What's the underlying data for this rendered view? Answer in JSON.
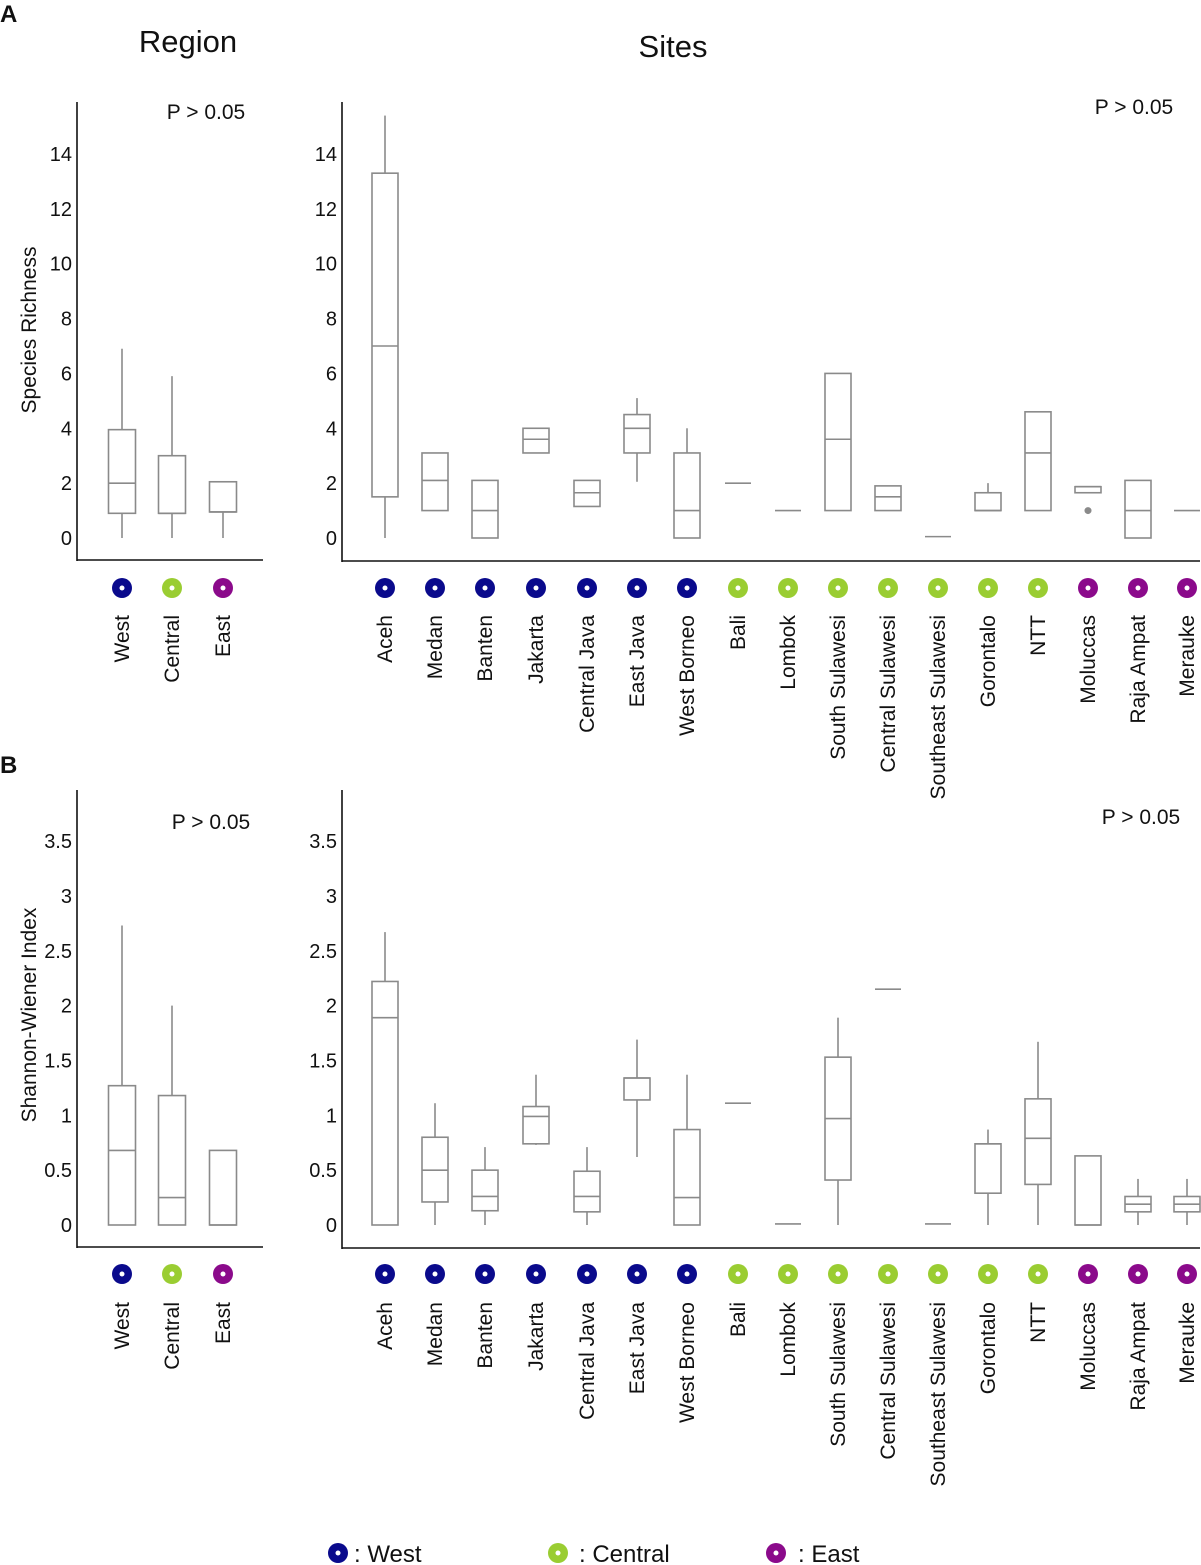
{
  "panel_labels": [
    "A",
    "B"
  ],
  "titles": {
    "region": "Region",
    "sites": "Sites"
  },
  "colors": {
    "West": "#0a0a8c",
    "Central": "#9acd32",
    "East": "#8b0a8b",
    "box": "#8a8a8a",
    "axis": "#111111"
  },
  "legend": [
    {
      "group": "West",
      "label": ": West"
    },
    {
      "group": "Central",
      "label": ": Central"
    },
    {
      "group": "East",
      "label": ": East"
    }
  ],
  "chart_data": [
    {
      "type": "boxplot",
      "panel": "A",
      "title": "Region",
      "ylabel": "Species Richness",
      "annotation": "P > 0.05",
      "ylim": [
        0,
        15
      ],
      "yticks": [
        "0",
        "2",
        "4",
        "6",
        "8",
        "10",
        "12",
        "14"
      ],
      "ytick_values": [
        0,
        2,
        4,
        6,
        8,
        10,
        12,
        14
      ],
      "categories": [
        "West",
        "Central",
        "East"
      ],
      "groups": [
        "West",
        "Central",
        "East"
      ],
      "boxes": [
        {
          "min": 0,
          "q1": 0.9,
          "median": 2.0,
          "q3": 3.95,
          "max": 6.9,
          "outliers": []
        },
        {
          "min": 0,
          "q1": 0.9,
          "median": 0.9,
          "q3": 3.0,
          "max": 5.9,
          "outliers": []
        },
        {
          "min": 0,
          "q1": 0.95,
          "median": 0.95,
          "q3": 2.05,
          "max": 2.05,
          "outliers": []
        }
      ]
    },
    {
      "type": "boxplot",
      "panel": "A",
      "title": "Sites",
      "ylabel": "",
      "annotation": "P > 0.05",
      "ylim": [
        0,
        15.5
      ],
      "yticks": [
        "0",
        "2",
        "4",
        "6",
        "8",
        "10",
        "12",
        "14"
      ],
      "ytick_values": [
        0,
        2,
        4,
        6,
        8,
        10,
        12,
        14
      ],
      "categories": [
        "Aceh",
        "Medan",
        "Banten",
        "Jakarta",
        "Central Java",
        "East Java",
        "West Borneo",
        "Bali",
        "Lombok",
        "South Sulawesi",
        "Central Sulawesi",
        "Southeast Sulawesi",
        "Gorontalo",
        "NTT",
        "Moluccas",
        "Raja Ampat",
        "Merauke"
      ],
      "groups": [
        "West",
        "West",
        "West",
        "West",
        "West",
        "West",
        "West",
        "Central",
        "Central",
        "Central",
        "Central",
        "Central",
        "Central",
        "Central",
        "East",
        "East",
        "East"
      ],
      "boxes": [
        {
          "min": 0,
          "q1": 1.5,
          "median": 7.0,
          "q3": 13.3,
          "max": 15.4,
          "outliers": []
        },
        {
          "min": 1.0,
          "q1": 1.0,
          "median": 2.1,
          "q3": 3.1,
          "max": 3.1,
          "outliers": []
        },
        {
          "min": 0,
          "q1": 0,
          "median": 1.0,
          "q3": 2.1,
          "max": 2.1,
          "outliers": []
        },
        {
          "min": 3.1,
          "q1": 3.1,
          "median": 3.6,
          "q3": 4.0,
          "max": 4.0,
          "outliers": []
        },
        {
          "min": 1.15,
          "q1": 1.15,
          "median": 1.65,
          "q3": 2.1,
          "max": 2.1,
          "outliers": []
        },
        {
          "min": 2.05,
          "q1": 3.1,
          "median": 4.0,
          "q3": 4.5,
          "max": 5.1,
          "outliers": []
        },
        {
          "min": 0,
          "q1": 0,
          "median": 1.0,
          "q3": 3.1,
          "max": 4.0,
          "outliers": []
        },
        {
          "min": 2.0,
          "q1": 2.0,
          "median": 2.0,
          "q3": 2.0,
          "max": 2.0,
          "outliers": []
        },
        {
          "min": 1.0,
          "q1": 1.0,
          "median": 1.0,
          "q3": 1.0,
          "max": 1.0,
          "outliers": []
        },
        {
          "min": 1.0,
          "q1": 1.0,
          "median": 3.6,
          "q3": 6.0,
          "max": 6.0,
          "outliers": []
        },
        {
          "min": 1.0,
          "q1": 1.0,
          "median": 1.5,
          "q3": 1.9,
          "max": 1.9,
          "outliers": []
        },
        {
          "min": 0.05,
          "q1": 0.05,
          "median": 0.05,
          "q3": 0.05,
          "max": 0.05,
          "outliers": []
        },
        {
          "min": 1.0,
          "q1": 1.0,
          "median": 1.0,
          "q3": 1.65,
          "max": 2.0,
          "outliers": []
        },
        {
          "min": 1.0,
          "q1": 1.0,
          "median": 3.1,
          "q3": 4.6,
          "max": 4.6,
          "outliers": []
        },
        {
          "min": 1.65,
          "q1": 1.65,
          "median": 1.87,
          "q3": 1.87,
          "max": 1.87,
          "outliers": [
            1.0
          ]
        },
        {
          "min": 0,
          "q1": 0,
          "median": 1.0,
          "q3": 2.1,
          "max": 2.1,
          "outliers": []
        },
        {
          "min": 1.0,
          "q1": 1.0,
          "median": 1.0,
          "q3": 1.0,
          "max": 1.0,
          "outliers": []
        }
      ]
    },
    {
      "type": "boxplot",
      "panel": "B",
      "title": "",
      "ylabel": "Shannon-Wiener Index",
      "annotation": "P > 0.05",
      "ylim": [
        0,
        3.9
      ],
      "yticks": [
        "0",
        "0.5",
        "1",
        "1.5",
        "2",
        "2.5",
        "3",
        "3.5"
      ],
      "ytick_values": [
        0,
        0.5,
        1,
        1.5,
        2,
        2.5,
        3,
        3.5
      ],
      "categories": [
        "West",
        "Central",
        "East"
      ],
      "groups": [
        "West",
        "Central",
        "East"
      ],
      "boxes": [
        {
          "min": 0,
          "q1": 0,
          "median": 0.68,
          "q3": 1.27,
          "max": 2.73,
          "outliers": []
        },
        {
          "min": 0,
          "q1": 0,
          "median": 0.25,
          "q3": 1.18,
          "max": 2.0,
          "outliers": []
        },
        {
          "min": 0,
          "q1": 0,
          "median": 0,
          "q3": 0.68,
          "max": 0.68,
          "outliers": []
        }
      ]
    },
    {
      "type": "boxplot",
      "panel": "B",
      "title": "",
      "ylabel": "",
      "annotation": "P > 0.05",
      "ylim": [
        0,
        3.9
      ],
      "yticks": [
        "0",
        "0.5",
        "1",
        "1.5",
        "2",
        "2.5",
        "3",
        "3.5"
      ],
      "ytick_values": [
        0,
        0.5,
        1,
        1.5,
        2,
        2.5,
        3,
        3.5
      ],
      "categories": [
        "Aceh",
        "Medan",
        "Banten",
        "Jakarta",
        "Central Java",
        "East Java",
        "West Borneo",
        "Bali",
        "Lombok",
        "South Sulawesi",
        "Central Sulawesi",
        "Southeast Sulawesi",
        "Gorontalo",
        "NTT",
        "Moluccas",
        "Raja Ampat",
        "Merauke"
      ],
      "groups": [
        "West",
        "West",
        "West",
        "West",
        "West",
        "West",
        "West",
        "Central",
        "Central",
        "Central",
        "Central",
        "Central",
        "Central",
        "Central",
        "East",
        "East",
        "East"
      ],
      "boxes": [
        {
          "min": 0,
          "q1": 0,
          "median": 1.89,
          "q3": 2.22,
          "max": 2.67,
          "outliers": []
        },
        {
          "min": 0,
          "q1": 0.21,
          "median": 0.5,
          "q3": 0.8,
          "max": 1.11,
          "outliers": []
        },
        {
          "min": 0,
          "q1": 0.13,
          "median": 0.26,
          "q3": 0.5,
          "max": 0.71,
          "outliers": []
        },
        {
          "min": 0.73,
          "q1": 0.74,
          "median": 0.99,
          "q3": 1.08,
          "max": 1.37,
          "outliers": []
        },
        {
          "min": 0,
          "q1": 0.12,
          "median": 0.26,
          "q3": 0.49,
          "max": 0.71,
          "outliers": []
        },
        {
          "min": 0.62,
          "q1": 1.14,
          "median": 1.34,
          "q3": 1.34,
          "max": 1.69,
          "outliers": []
        },
        {
          "min": 0,
          "q1": 0,
          "median": 0.25,
          "q3": 0.87,
          "max": 1.37,
          "outliers": []
        },
        {
          "min": 1.11,
          "q1": 1.11,
          "median": 1.11,
          "q3": 1.11,
          "max": 1.11,
          "outliers": []
        },
        {
          "min": 0.01,
          "q1": 0.01,
          "median": 0.01,
          "q3": 0.01,
          "max": 0.01,
          "outliers": []
        },
        {
          "min": 0,
          "q1": 0.41,
          "median": 0.97,
          "q3": 1.53,
          "max": 1.89,
          "outliers": []
        },
        {
          "min": 2.15,
          "q1": 2.15,
          "median": 2.15,
          "q3": 2.15,
          "max": 2.15,
          "outliers": []
        },
        {
          "min": 0.01,
          "q1": 0.01,
          "median": 0.01,
          "q3": 0.01,
          "max": 0.01,
          "outliers": []
        },
        {
          "min": 0,
          "q1": 0.29,
          "median": 0.74,
          "q3": 0.74,
          "max": 0.87,
          "outliers": []
        },
        {
          "min": 0,
          "q1": 0.37,
          "median": 0.79,
          "q3": 1.15,
          "max": 1.67,
          "outliers": []
        },
        {
          "min": 0,
          "q1": 0,
          "median": 0,
          "q3": 0.63,
          "max": 0.63,
          "outliers": []
        },
        {
          "min": 0,
          "q1": 0.12,
          "median": 0.19,
          "q3": 0.26,
          "max": 0.42,
          "outliers": []
        },
        {
          "min": 0,
          "q1": 0.12,
          "median": 0.19,
          "q3": 0.26,
          "max": 0.42,
          "outliers": []
        }
      ]
    }
  ]
}
